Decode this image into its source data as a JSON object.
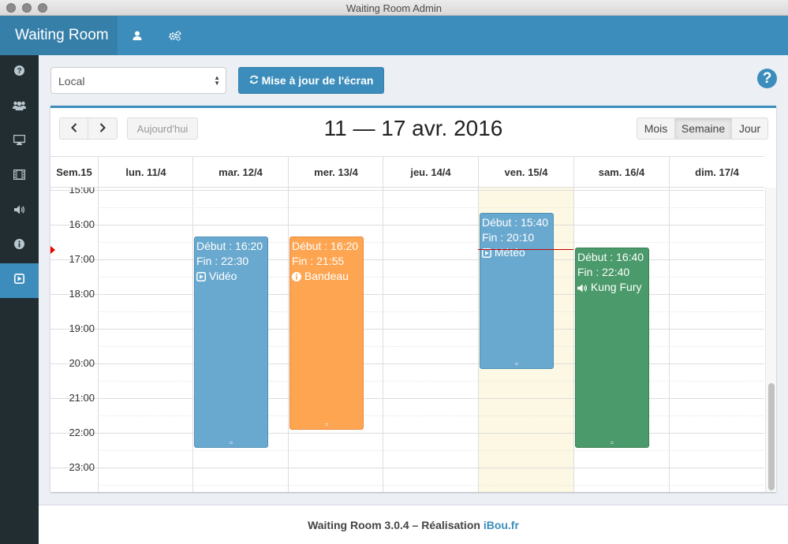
{
  "window": {
    "title": "Waiting Room Admin"
  },
  "header": {
    "brand": "Waiting Room",
    "icons": [
      "user-icon",
      "cogs-icon"
    ]
  },
  "sidebar": {
    "items": [
      {
        "icon": "question-circle-icon"
      },
      {
        "icon": "users-icon"
      },
      {
        "icon": "desktop-icon"
      },
      {
        "icon": "film-icon"
      },
      {
        "icon": "volume-icon"
      },
      {
        "icon": "info-circle-icon"
      },
      {
        "icon": "play-square-icon",
        "active": true
      }
    ]
  },
  "controls": {
    "location_value": "Local",
    "refresh_label": "Mise à jour de l'écran",
    "help_label": "?"
  },
  "calendar": {
    "prev_label": "<",
    "next_label": ">",
    "today_label": "Aujourd'hui",
    "title": "11 — 17 avr. 2016",
    "views": {
      "month": "Mois",
      "week": "Semaine",
      "day": "Jour"
    },
    "active_view": "Semaine",
    "week_label": "Sem.15",
    "days": [
      "lun. 11/4",
      "mar. 12/4",
      "mer. 13/4",
      "jeu. 14/4",
      "ven. 15/4",
      "sam. 16/4",
      "dim. 17/4"
    ],
    "today_day": "ven. 15/4",
    "hours": [
      "15:00",
      "16:00",
      "17:00",
      "18:00",
      "19:00",
      "20:00",
      "21:00",
      "22:00",
      "23:00"
    ],
    "events": [
      {
        "start": "Début : 16:20",
        "end": "Fin : 22:30",
        "label": "Vidéo",
        "icon": "play-square-icon",
        "color": "#6aa9cf",
        "border": "#4f8fb8"
      },
      {
        "start": "Début : 16:20",
        "end": "Fin : 21:55",
        "label": "Bandeau",
        "icon": "info-circle-icon",
        "color": "#fda551",
        "border": "#e9873a"
      },
      {
        "start": "Début : 15:40",
        "end": "Fin : 20:10",
        "label": "Météo",
        "icon": "play-square-icon",
        "color": "#6aa9cf",
        "border": "#4f8fb8"
      },
      {
        "start": "Début : 16:40",
        "end": "Fin : 22:40",
        "label": "Kung Fury",
        "icon": "volume-icon",
        "color": "#4b9a6b",
        "border": "#3a7f56"
      }
    ]
  },
  "footer": {
    "text": "Waiting Room 3.0.4 – Réalisation",
    "link": "iBou.fr"
  }
}
